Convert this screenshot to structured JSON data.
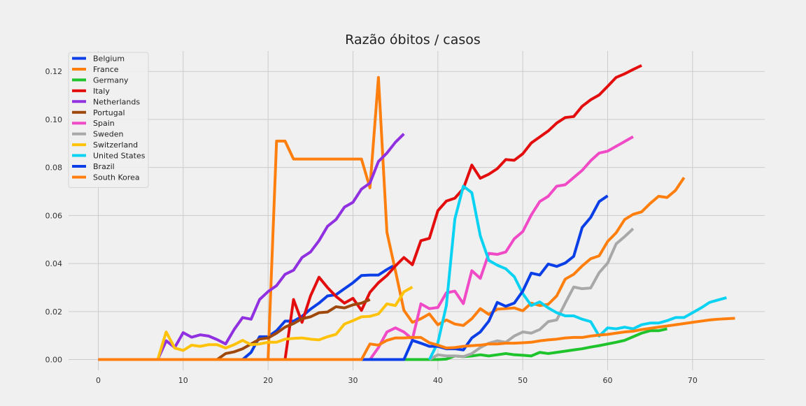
{
  "chart_data": {
    "type": "line",
    "title": "Razão óbitos / casos",
    "xlabel": "",
    "ylabel": "",
    "xlim": [
      -3.5,
      78.5
    ],
    "ylim": [
      -0.0045,
      0.1285
    ],
    "x_ticks": [
      0,
      10,
      20,
      30,
      40,
      50,
      60,
      70
    ],
    "y_ticks": [
      0.0,
      0.02,
      0.04,
      0.06,
      0.08,
      0.1,
      0.12
    ],
    "y_tick_labels": [
      "0.00",
      "0.02",
      "0.04",
      "0.06",
      "0.08",
      "0.10",
      "0.12"
    ],
    "grid": true,
    "legend_position": "top-left",
    "background": "#f0f0f0",
    "grid_color": "#cbcbcb",
    "series": [
      {
        "name": "Belgium",
        "color": "#0a3fe8",
        "x_start": 0,
        "values": [
          0,
          0,
          0,
          0,
          0,
          0,
          0,
          0,
          0,
          0,
          0,
          0,
          0,
          0,
          0,
          0,
          0,
          0,
          0.003,
          0.0095,
          0.0095,
          0.012,
          0.016,
          0.016,
          0.018,
          0.021,
          0.0235,
          0.0265,
          0.027,
          0.0295,
          0.032,
          0.035,
          0.0352,
          0.0352,
          0.0375,
          0.0395
        ]
      },
      {
        "name": "France",
        "color": "#ff7f0e",
        "x_start": 0,
        "values": [
          0,
          0,
          0,
          0,
          0,
          0,
          0,
          0,
          0,
          0,
          0,
          0,
          0,
          0,
          0,
          0,
          0,
          0,
          0,
          0,
          0,
          0.091,
          0.091,
          0.0835,
          0.0835,
          0.0835,
          0.0835,
          0.0835,
          0.0835,
          0.0835,
          0.0835,
          0.0835,
          0.0715,
          0.1175,
          0.053,
          0.037,
          0.0205,
          0.0155,
          0.017,
          0.019,
          0.0145,
          0.0165,
          0.0148,
          0.0142,
          0.017,
          0.0212,
          0.0188,
          0.021,
          0.0212,
          0.0215,
          0.0203,
          0.0235,
          0.0225,
          0.023,
          0.0265,
          0.0335,
          0.0355,
          0.039,
          0.042,
          0.0432,
          0.0492,
          0.0528,
          0.0583,
          0.0605,
          0.0615,
          0.065,
          0.068,
          0.0675,
          0.0705,
          0.0758
        ]
      },
      {
        "name": "Germany",
        "color": "#1fc42c",
        "x_start": 0,
        "values": [
          0,
          0,
          0,
          0,
          0,
          0,
          0,
          0,
          0,
          0,
          0,
          0,
          0,
          0,
          0,
          0,
          0,
          0,
          0,
          0,
          0,
          0,
          0,
          0,
          0,
          0,
          0,
          0,
          0,
          0,
          0,
          0,
          0,
          0,
          0,
          0,
          0,
          0,
          0,
          0,
          0,
          0.0002,
          0.0015,
          0.0012,
          0.0015,
          0.002,
          0.0015,
          0.002,
          0.0025,
          0.002,
          0.0018,
          0.0015,
          0.003,
          0.0025,
          0.003,
          0.0035,
          0.004,
          0.0045,
          0.0052,
          0.0058,
          0.0065,
          0.0072,
          0.008,
          0.0095,
          0.011,
          0.012,
          0.012,
          0.0128
        ]
      },
      {
        "name": "Italy",
        "color": "#e30d0d",
        "x_start": 0,
        "values": [
          0,
          0,
          0,
          0,
          0,
          0,
          0,
          0,
          0,
          0,
          0,
          0,
          0,
          0,
          0,
          0,
          0,
          0,
          0,
          0,
          0,
          0,
          0,
          0.025,
          0.0155,
          0.0265,
          0.0343,
          0.03,
          0.0263,
          0.0235,
          0.0255,
          0.0205,
          0.028,
          0.032,
          0.035,
          0.039,
          0.0425,
          0.0395,
          0.0495,
          0.0505,
          0.062,
          0.066,
          0.0672,
          0.0712,
          0.081,
          0.0755,
          0.0772,
          0.0795,
          0.0833,
          0.083,
          0.0857,
          0.0902,
          0.0927,
          0.0952,
          0.0985,
          0.1008,
          0.1012,
          0.1055,
          0.1082,
          0.1102,
          0.1138,
          0.1175,
          0.119,
          0.1208,
          0.1225
        ]
      },
      {
        "name": "Netherlands",
        "color": "#9030e0",
        "x_start": 7,
        "values": [
          0,
          0.0078,
          0.005,
          0.0112,
          0.0093,
          0.0103,
          0.0098,
          0.0083,
          0.0065,
          0.0125,
          0.0175,
          0.0168,
          0.025,
          0.0283,
          0.0308,
          0.0355,
          0.0372,
          0.0425,
          0.0448,
          0.0495,
          0.0555,
          0.0583,
          0.0635,
          0.0655,
          0.071,
          0.0735,
          0.0825,
          0.086,
          0.0905,
          0.094
        ]
      },
      {
        "name": "Portugal",
        "color": "#a0480c",
        "x_start": 0,
        "values": [
          0,
          0,
          0,
          0,
          0,
          0,
          0,
          0,
          0,
          0,
          0,
          0,
          0,
          0,
          0,
          0.0025,
          0.0032,
          0.0045,
          0.0065,
          0.0085,
          0.009,
          0.011,
          0.0135,
          0.015,
          0.017,
          0.0178,
          0.0195,
          0.0198,
          0.022,
          0.0215,
          0.0228,
          0.0235,
          0.025
        ]
      },
      {
        "name": "Spain",
        "color": "#f04ac6",
        "x_start": 0,
        "values": [
          0,
          0,
          0,
          0,
          0,
          0,
          0,
          0,
          0,
          0,
          0,
          0,
          0,
          0,
          0,
          0,
          0,
          0,
          0,
          0,
          0,
          0,
          0,
          0,
          0,
          0,
          0,
          0,
          0,
          0,
          0,
          0,
          0,
          0.005,
          0.0115,
          0.0132,
          0.0115,
          0.0085,
          0.0232,
          0.0212,
          0.0217,
          0.0278,
          0.0285,
          0.0233,
          0.037,
          0.0338,
          0.0442,
          0.0438,
          0.0448,
          0.0503,
          0.0533,
          0.0602,
          0.0658,
          0.068,
          0.0722,
          0.0728,
          0.0758,
          0.0788,
          0.0828,
          0.086,
          0.0868,
          0.0888,
          0.0908,
          0.0928
        ]
      },
      {
        "name": "Sweden",
        "color": "#a8a8a8",
        "x_start": 39,
        "values": [
          0,
          0.002,
          0.0015,
          0.0015,
          0.0012,
          0.0025,
          0.005,
          0.0068,
          0.0078,
          0.0072,
          0.0098,
          0.0115,
          0.011,
          0.0125,
          0.0158,
          0.0165,
          0.0235,
          0.0302,
          0.0295,
          0.0298,
          0.0362,
          0.0402,
          0.0482,
          0.0512,
          0.0545
        ]
      },
      {
        "name": "Switzerland",
        "color": "#ffc20a",
        "x_start": 7,
        "values": [
          0,
          0.0115,
          0.0048,
          0.0038,
          0.006,
          0.0055,
          0.0062,
          0.0062,
          0.0048,
          0.0062,
          0.008,
          0.0062,
          0.0065,
          0.0072,
          0.0072,
          0.0085,
          0.0088,
          0.009,
          0.0085,
          0.0082,
          0.0095,
          0.0105,
          0.0148,
          0.0162,
          0.0178,
          0.018,
          0.019,
          0.0232,
          0.0225,
          0.0282,
          0.0302
        ]
      },
      {
        "name": "United States",
        "color": "#0ad2f2",
        "x_start": 39,
        "values": [
          0,
          0.007,
          0.0225,
          0.0585,
          0.0722,
          0.0695,
          0.0515,
          0.0413,
          0.0393,
          0.0378,
          0.0345,
          0.0275,
          0.0225,
          0.024,
          0.0215,
          0.0195,
          0.0182,
          0.0182,
          0.0168,
          0.0158,
          0.0098,
          0.0132,
          0.0128,
          0.0135,
          0.0128,
          0.0145,
          0.0152,
          0.0152,
          0.0162,
          0.0175,
          0.0175,
          0.0195,
          0.0215,
          0.0238,
          0.0248,
          0.0258
        ]
      },
      {
        "name": "Brazil",
        "color": "#0a3fe8",
        "x_start": 31,
        "values": [
          0,
          0,
          0,
          0,
          0,
          0,
          0.008,
          0.0068,
          0.0055,
          0.0055,
          0.0045,
          0.0045,
          0.004,
          0.009,
          0.0115,
          0.016,
          0.0238,
          0.0222,
          0.0235,
          0.0285,
          0.036,
          0.0352,
          0.0398,
          0.0388,
          0.0402,
          0.043,
          0.055,
          0.0592,
          0.0658,
          0.0682
        ]
      },
      {
        "name": "South Korea",
        "color": "#ff7f0e",
        "x_start": 0,
        "values": [
          0,
          0,
          0,
          0,
          0,
          0,
          0,
          0,
          0,
          0,
          0,
          0,
          0,
          0,
          0,
          0,
          0,
          0,
          0,
          0,
          0,
          0,
          0,
          0,
          0,
          0,
          0,
          0,
          0,
          0,
          0,
          0,
          0.0065,
          0.006,
          0.008,
          0.009,
          0.009,
          0.0092,
          0.0092,
          0.007,
          0.006,
          0.0048,
          0.005,
          0.0055,
          0.0058,
          0.006,
          0.0065,
          0.0065,
          0.0068,
          0.0068,
          0.007,
          0.0072,
          0.0078,
          0.0082,
          0.0085,
          0.009,
          0.0092,
          0.0092,
          0.0098,
          0.0102,
          0.0105,
          0.011,
          0.0115,
          0.0118,
          0.0125,
          0.013,
          0.0135,
          0.014,
          0.0145,
          0.015,
          0.0155,
          0.016,
          0.0165,
          0.0168,
          0.017,
          0.0172
        ]
      }
    ]
  }
}
